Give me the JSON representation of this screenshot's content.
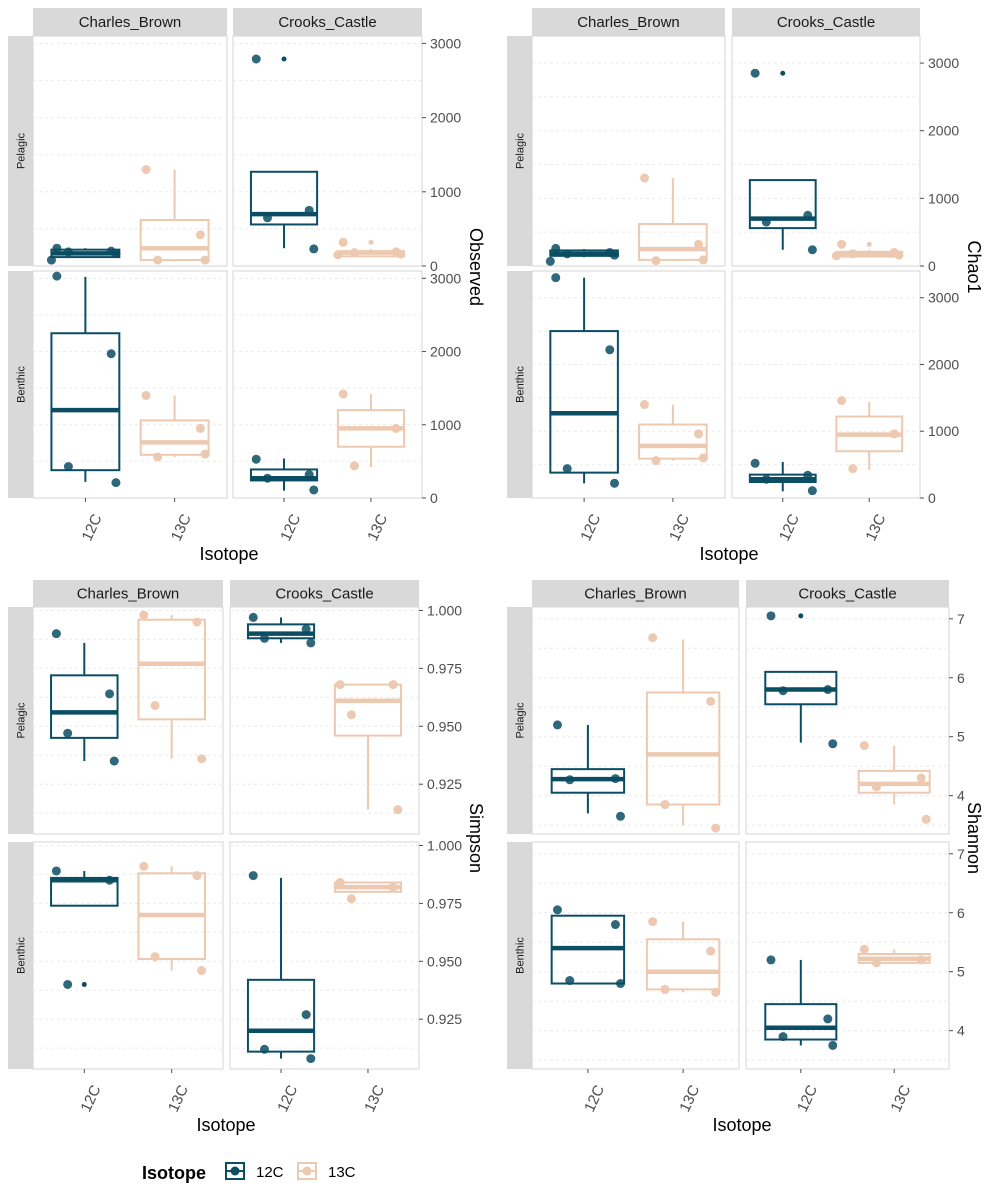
{
  "colors": {
    "c12": "#0b4d63",
    "c13": "#ecc9b0",
    "strip": "#d9d9d9",
    "grid": "#ebebeb",
    "panel_border": "#d6d6d6"
  },
  "legend": {
    "title": "Isotope",
    "items": [
      {
        "label": "12C",
        "color_key": "c12"
      },
      {
        "label": "13C",
        "color_key": "c13"
      }
    ]
  },
  "chart_data": [
    {
      "type": "boxplot",
      "ylabel": "Observed",
      "xlabel": "Isotope",
      "columns": [
        "Charles_Brown",
        "Crooks_Castle"
      ],
      "rows": [
        "Pelagic",
        "Benthic"
      ],
      "categories": [
        "12C",
        "13C"
      ],
      "ylim": [
        0,
        3100
      ],
      "yticks": [
        0,
        1000,
        2000,
        3000
      ],
      "yticklabels": [
        "0",
        "1000",
        "2000",
        "3000"
      ],
      "panels": [
        {
          "row": "Pelagic",
          "col": "Charles_Brown",
          "boxes": [
            {
              "iso": "12C",
              "min": 120,
              "q1": 120,
              "median": 170,
              "q3": 220,
              "max": 240,
              "points": [
                240,
                200,
                190,
                170,
                80
              ],
              "outliers": []
            },
            {
              "iso": "13C",
              "min": 60,
              "q1": 80,
              "median": 240,
              "q3": 620,
              "max": 1300,
              "points": [
                1300,
                420,
                80,
                80
              ],
              "outliers": []
            }
          ]
        },
        {
          "row": "Pelagic",
          "col": "Crooks_Castle",
          "boxes": [
            {
              "iso": "12C",
              "min": 240,
              "q1": 560,
              "median": 700,
              "q3": 1270,
              "max": 1270,
              "points": [
                2790,
                750,
                650,
                230
              ],
              "outliers": [
                2790
              ]
            },
            {
              "iso": "13C",
              "min": 120,
              "q1": 130,
              "median": 180,
              "q3": 200,
              "max": 230,
              "points": [
                320,
                190,
                180,
                160,
                150
              ],
              "outliers": [
                320
              ]
            }
          ]
        },
        {
          "row": "Benthic",
          "col": "Charles_Brown",
          "boxes": [
            {
              "iso": "12C",
              "min": 220,
              "q1": 380,
              "median": 1200,
              "q3": 2250,
              "max": 3020,
              "points": [
                3030,
                1970,
                430,
                210
              ],
              "outliers": []
            },
            {
              "iso": "13C",
              "min": 560,
              "q1": 590,
              "median": 760,
              "q3": 1060,
              "max": 1400,
              "points": [
                1400,
                950,
                560,
                600
              ],
              "outliers": []
            }
          ]
        },
        {
          "row": "Benthic",
          "col": "Crooks_Castle",
          "boxes": [
            {
              "iso": "12C",
              "min": 100,
              "q1": 240,
              "median": 270,
              "q3": 390,
              "max": 540,
              "points": [
                530,
                320,
                270,
                110
              ],
              "outliers": []
            },
            {
              "iso": "13C",
              "min": 420,
              "q1": 700,
              "median": 950,
              "q3": 1200,
              "max": 1420,
              "points": [
                1420,
                950,
                440
              ],
              "outliers": []
            }
          ]
        }
      ]
    },
    {
      "type": "boxplot",
      "ylabel": "Chao1",
      "xlabel": "Isotope",
      "columns": [
        "Charles_Brown",
        "Crooks_Castle"
      ],
      "rows": [
        "Pelagic",
        "Benthic"
      ],
      "categories": [
        "12C",
        "13C"
      ],
      "ylim": [
        0,
        3400
      ],
      "yticks": [
        0,
        1000,
        2000,
        3000
      ],
      "yticklabels": [
        "0",
        "1000",
        "2000",
        "3000"
      ],
      "panels": [
        {
          "row": "Pelagic",
          "col": "Charles_Brown",
          "boxes": [
            {
              "iso": "12C",
              "min": 130,
              "q1": 150,
              "median": 180,
              "q3": 230,
              "max": 250,
              "points": [
                260,
                200,
                180,
                160,
                70
              ],
              "outliers": []
            },
            {
              "iso": "13C",
              "min": 70,
              "q1": 90,
              "median": 250,
              "q3": 620,
              "max": 1300,
              "points": [
                1300,
                320,
                80,
                90
              ],
              "outliers": []
            }
          ]
        },
        {
          "row": "Pelagic",
          "col": "Crooks_Castle",
          "boxes": [
            {
              "iso": "12C",
              "min": 240,
              "q1": 560,
              "median": 700,
              "q3": 1270,
              "max": 1270,
              "points": [
                2850,
                750,
                650,
                240
              ],
              "outliers": [
                2850
              ]
            },
            {
              "iso": "13C",
              "min": 130,
              "q1": 140,
              "median": 180,
              "q3": 210,
              "max": 240,
              "points": [
                320,
                200,
                180,
                160,
                150
              ],
              "outliers": [
                320
              ]
            }
          ]
        },
        {
          "row": "Benthic",
          "col": "Charles_Brown",
          "boxes": [
            {
              "iso": "12C",
              "min": 220,
              "q1": 380,
              "median": 1270,
              "q3": 2500,
              "max": 3300,
              "points": [
                3300,
                2220,
                440,
                220
              ],
              "outliers": []
            },
            {
              "iso": "13C",
              "min": 560,
              "q1": 590,
              "median": 780,
              "q3": 1100,
              "max": 1400,
              "points": [
                1400,
                960,
                560,
                600
              ],
              "outliers": []
            }
          ]
        },
        {
          "row": "Benthic",
          "col": "Crooks_Castle",
          "boxes": [
            {
              "iso": "12C",
              "min": 100,
              "q1": 240,
              "median": 280,
              "q3": 350,
              "max": 540,
              "points": [
                520,
                340,
                280,
                110
              ],
              "outliers": []
            },
            {
              "iso": "13C",
              "min": 420,
              "q1": 700,
              "median": 950,
              "q3": 1220,
              "max": 1440,
              "points": [
                1460,
                960,
                440
              ],
              "outliers": []
            }
          ]
        }
      ]
    },
    {
      "type": "boxplot",
      "ylabel": "Simpson",
      "xlabel": "Isotope",
      "columns": [
        "Charles_Brown",
        "Crooks_Castle"
      ],
      "rows": [
        "Pelagic",
        "Benthic"
      ],
      "categories": [
        "12C",
        "13C"
      ],
      "ylim": [
        0.9035,
        1.0015
      ],
      "yticks": [
        0.925,
        0.95,
        0.975,
        1.0
      ],
      "yticklabels": [
        "0.925",
        "0.950",
        "0.975",
        "1.000"
      ],
      "panels": [
        {
          "row": "Pelagic",
          "col": "Charles_Brown",
          "boxes": [
            {
              "iso": "12C",
              "min": 0.935,
              "q1": 0.945,
              "median": 0.956,
              "q3": 0.972,
              "max": 0.986,
              "points": [
                0.99,
                0.964,
                0.947,
                0.935
              ],
              "outliers": []
            },
            {
              "iso": "13C",
              "min": 0.936,
              "q1": 0.953,
              "median": 0.977,
              "q3": 0.996,
              "max": 0.998,
              "points": [
                0.998,
                0.995,
                0.959,
                0.936
              ],
              "outliers": []
            }
          ]
        },
        {
          "row": "Pelagic",
          "col": "Crooks_Castle",
          "boxes": [
            {
              "iso": "12C",
              "min": 0.986,
              "q1": 0.988,
              "median": 0.99,
              "q3": 0.994,
              "max": 0.997,
              "points": [
                0.997,
                0.992,
                0.988,
                0.986
              ],
              "outliers": []
            },
            {
              "iso": "13C",
              "min": 0.914,
              "q1": 0.946,
              "median": 0.961,
              "q3": 0.968,
              "max": 0.968,
              "points": [
                0.968,
                0.968,
                0.955,
                0.914
              ],
              "outliers": []
            }
          ]
        },
        {
          "row": "Benthic",
          "col": "Charles_Brown",
          "boxes": [
            {
              "iso": "12C",
              "min": 0.974,
              "q1": 0.974,
              "median": 0.985,
              "q3": 0.986,
              "max": 0.989,
              "points": [
                0.989,
                0.985,
                0.94
              ],
              "outliers": [
                0.94
              ]
            },
            {
              "iso": "13C",
              "min": 0.946,
              "q1": 0.951,
              "median": 0.97,
              "q3": 0.988,
              "max": 0.991,
              "points": [
                0.991,
                0.987,
                0.952,
                0.946
              ],
              "outliers": []
            }
          ]
        },
        {
          "row": "Benthic",
          "col": "Crooks_Castle",
          "boxes": [
            {
              "iso": "12C",
              "min": 0.908,
              "q1": 0.911,
              "median": 0.92,
              "q3": 0.942,
              "max": 0.986,
              "points": [
                0.987,
                0.927,
                0.912,
                0.908
              ],
              "outliers": []
            },
            {
              "iso": "13C",
              "min": 0.98,
              "q1": 0.98,
              "median": 0.982,
              "q3": 0.984,
              "max": 0.984,
              "points": [
                0.984,
                0.982,
                0.977
              ],
              "outliers": []
            }
          ]
        }
      ]
    },
    {
      "type": "boxplot",
      "ylabel": "Shannon",
      "xlabel": "Isotope",
      "columns": [
        "Charles_Brown",
        "Crooks_Castle"
      ],
      "rows": [
        "Pelagic",
        "Benthic"
      ],
      "categories": [
        "12C",
        "13C"
      ],
      "ylim": [
        3.35,
        7.2
      ],
      "yticks": [
        4,
        5,
        6,
        7
      ],
      "yticklabels": [
        "4",
        "5",
        "6",
        "7"
      ],
      "panels": [
        {
          "row": "Pelagic",
          "col": "Charles_Brown",
          "boxes": [
            {
              "iso": "12C",
              "min": 3.7,
              "q1": 4.05,
              "median": 4.28,
              "q3": 4.45,
              "max": 5.2,
              "points": [
                5.2,
                4.29,
                4.27,
                3.65
              ],
              "outliers": []
            },
            {
              "iso": "13C",
              "min": 3.5,
              "q1": 3.85,
              "median": 4.7,
              "q3": 5.75,
              "max": 6.65,
              "points": [
                6.68,
                5.6,
                3.85,
                3.45
              ],
              "outliers": []
            }
          ]
        },
        {
          "row": "Pelagic",
          "col": "Crooks_Castle",
          "boxes": [
            {
              "iso": "12C",
              "min": 4.9,
              "q1": 5.55,
              "median": 5.8,
              "q3": 6.1,
              "max": 6.1,
              "points": [
                7.05,
                5.8,
                5.78,
                4.88
              ],
              "outliers": [
                7.05
              ]
            },
            {
              "iso": "13C",
              "min": 3.85,
              "q1": 4.05,
              "median": 4.2,
              "q3": 4.42,
              "max": 4.85,
              "points": [
                4.85,
                4.3,
                4.15,
                3.6
              ],
              "outliers": []
            }
          ]
        },
        {
          "row": "Benthic",
          "col": "Charles_Brown",
          "boxes": [
            {
              "iso": "12C",
              "min": 4.8,
              "q1": 4.8,
              "median": 5.4,
              "q3": 5.95,
              "max": 5.95,
              "points": [
                6.05,
                5.8,
                4.85,
                4.8
              ],
              "outliers": []
            },
            {
              "iso": "13C",
              "min": 4.65,
              "q1": 4.7,
              "median": 5.0,
              "q3": 5.55,
              "max": 5.85,
              "points": [
                5.85,
                5.35,
                4.7,
                4.65
              ],
              "outliers": []
            }
          ]
        },
        {
          "row": "Benthic",
          "col": "Crooks_Castle",
          "boxes": [
            {
              "iso": "12C",
              "min": 3.75,
              "q1": 3.85,
              "median": 4.05,
              "q3": 4.45,
              "max": 5.2,
              "points": [
                5.2,
                4.2,
                3.9,
                3.75
              ],
              "outliers": []
            },
            {
              "iso": "13C",
              "min": 5.15,
              "q1": 5.15,
              "median": 5.22,
              "q3": 5.3,
              "max": 5.38,
              "points": [
                5.38,
                5.2,
                5.15
              ],
              "outliers": []
            }
          ]
        }
      ]
    }
  ]
}
